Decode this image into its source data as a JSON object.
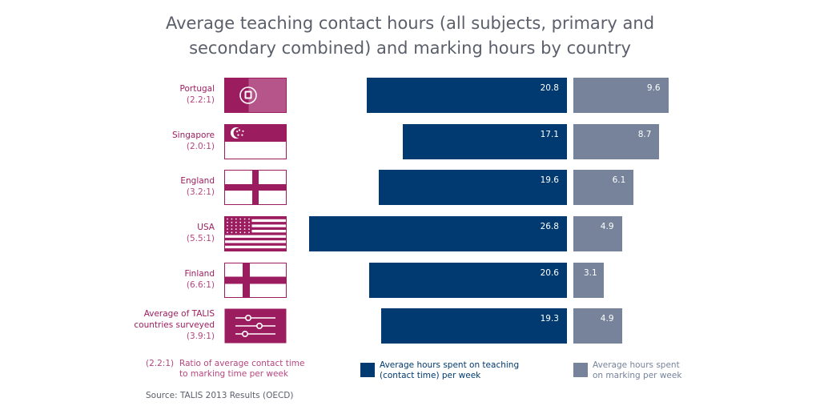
{
  "chart_data": {
    "type": "bar",
    "title": [
      "Average teaching contact hours (all subjects, primary and",
      "secondary combined) and marking hours by country"
    ],
    "categories": [
      {
        "name": "Portugal",
        "ratio": "(2.2:1)",
        "flag": "portugal-flag"
      },
      {
        "name": "Singapore",
        "ratio": "(2.0:1)",
        "flag": "singapore-flag"
      },
      {
        "name": "England",
        "ratio": "(3.2:1)",
        "flag": "england-flag"
      },
      {
        "name": "USA",
        "ratio": "(5.5:1)",
        "flag": "usa-flag"
      },
      {
        "name": "Finland",
        "ratio": "(6.6:1)",
        "flag": "finland-flag"
      },
      {
        "name": "Average of TALIS countries surveyed",
        "ratio": "(3.9:1)",
        "flag": "talis-sliders-icon"
      }
    ],
    "series": [
      {
        "name": "Average hours spent on teaching (contact time) per week",
        "color": "#003a70",
        "values": [
          20.8,
          17.1,
          19.6,
          26.8,
          20.6,
          19.3
        ]
      },
      {
        "name": "Average hours spent on marking per week",
        "color": "#76839b",
        "values": [
          9.6,
          8.7,
          6.1,
          4.9,
          3.1,
          4.9
        ]
      }
    ],
    "legend": {
      "ratio_key": "(2.2:1)",
      "ratio_text": [
        "Ratio of average contact time",
        "to marking time per week"
      ],
      "teaching_text": [
        "Average hours spent on teaching",
        "(contact time) per week"
      ],
      "marking_text": [
        "Average hours spent",
        "on marking per week"
      ]
    },
    "source": "Source: TALIS 2013 Results (OECD)"
  },
  "colors": {
    "title": "#5b5f6b",
    "label": "#9c1d5f",
    "flag": "#9c1d5f",
    "teaching": "#003a70",
    "marking": "#76839b"
  }
}
